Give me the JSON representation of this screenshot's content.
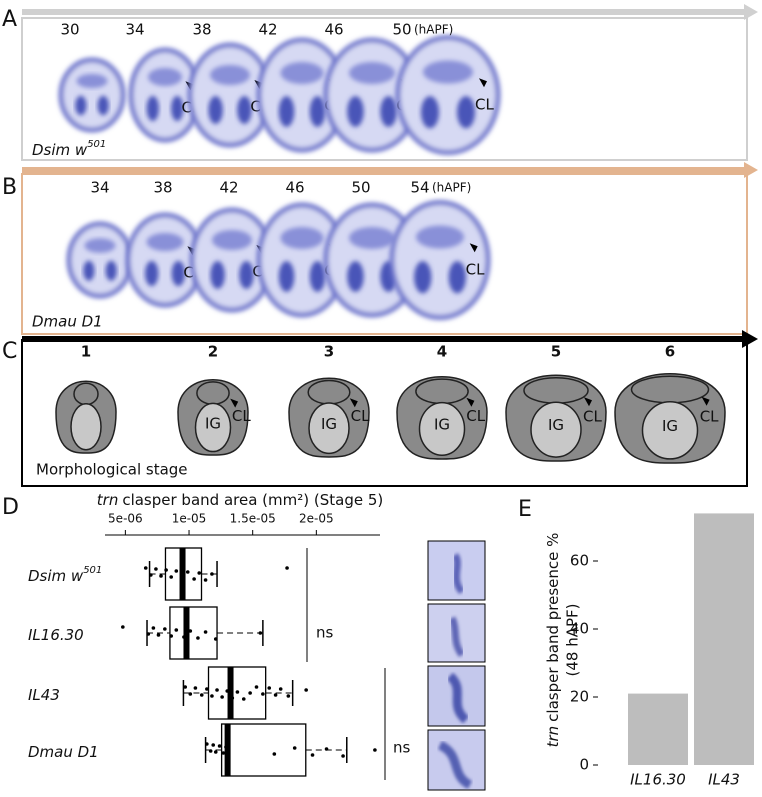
{
  "panel_labels": [
    "A",
    "B",
    "C",
    "D",
    "E"
  ],
  "panel_a": {
    "times": [
      "30",
      "34",
      "38",
      "42",
      "46",
      "50"
    ],
    "unit": "(hAPF)",
    "cl_labels": [
      "CL",
      "CL",
      "CL",
      "CL",
      "CL"
    ],
    "genotype": "Dsim w",
    "genotype_sup": "501"
  },
  "panel_b": {
    "times": [
      "34",
      "38",
      "42",
      "46",
      "50",
      "54"
    ],
    "unit": "(hAPF)",
    "cl_labels": [
      "CL",
      "CL",
      "CL",
      "CL",
      "CL"
    ],
    "genotype": "Dmau D1"
  },
  "panel_c": {
    "stages": [
      "1",
      "2",
      "3",
      "4",
      "5",
      "6"
    ],
    "ig_labels": [
      "IG",
      "IG",
      "IG",
      "IG",
      "IG"
    ],
    "cl_labels": [
      "CL",
      "CL",
      "CL",
      "CL",
      "CL"
    ],
    "caption": "Morphological stage"
  },
  "chart_data": [
    {
      "type": "boxplot",
      "xlabel_italic": "trn",
      "xlabel": "clasper band area (mm²) (Stage 5)",
      "categories": [
        "Dsim w",
        "IL16.30",
        "IL43",
        "Dmau D1"
      ],
      "category_sup": [
        "501",
        null,
        null,
        null
      ],
      "xlim": [
        3.4e-06,
        2.5e-05
      ],
      "xticks": [
        {
          "value": 5e-06,
          "label": "5e-06"
        },
        {
          "value": 1e-05,
          "label": "1e-05"
        },
        {
          "value": 1.5e-05,
          "label": "1.5e-05"
        },
        {
          "value": 2e-05,
          "label": "2e-05"
        }
      ],
      "boxes": [
        {
          "whisker_low": 6.9e-06,
          "q1": 8.15e-06,
          "median": 9.49e-06,
          "q3": 1.098e-05,
          "whisker_high": 1.22e-05
        },
        {
          "whisker_low": 6.7e-06,
          "q1": 8.5e-06,
          "median": 9.8e-06,
          "q3": 1.22e-05,
          "whisker_high": 1.58e-05
        },
        {
          "whisker_low": 9.56e-06,
          "q1": 1.153e-05,
          "median": 1.326e-05,
          "q3": 1.602e-05,
          "whisker_high": 1.814e-05
        },
        {
          "whisker_low": 1.13e-05,
          "q1": 1.256e-05,
          "median": 1.303e-05,
          "q3": 1.917e-05,
          "whisker_high": 2.239e-05
        }
      ],
      "points": [
        [
          6.6e-06,
          7e-06,
          7.4e-06,
          7.8e-06,
          8.2e-06,
          8.6e-06,
          9e-06,
          9.5e-06,
          9.9e-06,
          1.04e-05,
          1.08e-05,
          1.13e-05,
          1.18e-05,
          1.77e-05
        ],
        [
          4.8e-06,
          6.8e-06,
          7.2e-06,
          7.6e-06,
          8.1e-06,
          8.6e-06,
          9e-06,
          9.6e-06,
          1.01e-05,
          1.07e-05,
          1.13e-05,
          1.21e-05,
          1.56e-05
        ],
        [
          9.7e-06,
          1.01e-05,
          1.05e-05,
          1.1e-05,
          1.14e-05,
          1.18e-05,
          1.22e-05,
          1.26e-05,
          1.3e-05,
          1.34e-05,
          1.38e-05,
          1.43e-05,
          1.48e-05,
          1.53e-05,
          1.58e-05,
          1.63e-05,
          1.68e-05,
          1.72e-05,
          1.78e-05,
          1.92e-05
        ],
        [
          1.14e-05,
          1.17e-05,
          1.19e-05,
          1.21e-05,
          1.24e-05,
          1.27e-05,
          1.29e-05,
          1.67e-05,
          1.83e-05,
          1.97e-05,
          2.08e-05,
          2.21e-05,
          2.46e-05
        ]
      ],
      "annotations": [
        "ns",
        "ns"
      ]
    },
    {
      "type": "bar",
      "ylabel_italic": "trn",
      "ylabel": "clasper band presence %",
      "ylabel2": "(48 hAPF)",
      "categories": [
        "IL16.30",
        "IL43"
      ],
      "values": [
        21,
        74
      ],
      "color": "#bdbdbd",
      "ylim": [
        0,
        75
      ],
      "yticks": [
        0,
        20,
        40,
        60
      ]
    }
  ]
}
